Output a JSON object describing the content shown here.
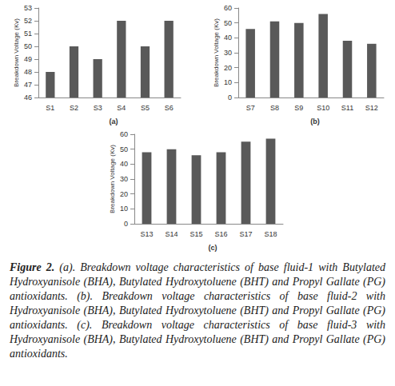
{
  "chart_data": [
    {
      "type": "bar",
      "title": "(a)",
      "y_label": "Breakdown Voltage (Kv)",
      "categories": [
        "S1",
        "S2",
        "S3",
        "S4",
        "S5",
        "S6"
      ],
      "values": [
        48,
        50,
        49,
        52,
        50,
        52
      ],
      "color": "#595959",
      "ylim": [
        46,
        53
      ],
      "yticks": [
        46,
        47,
        48,
        49,
        50,
        51,
        52,
        53
      ],
      "grid": false
    },
    {
      "type": "bar",
      "title": "(b)",
      "y_label": "Breakdown Voltage (Kv)",
      "categories": [
        "S7",
        "S8",
        "S9",
        "S10",
        "S11",
        "S12"
      ],
      "values": [
        46,
        51,
        50,
        56,
        38,
        36
      ],
      "color": "#595959",
      "ylim": [
        0,
        60
      ],
      "yticks": [
        0,
        10,
        20,
        30,
        40,
        50,
        60
      ],
      "grid": false
    },
    {
      "type": "bar",
      "title": "(c)",
      "y_label": "Breakdown Voltage (Kv)",
      "categories": [
        "S13",
        "S14",
        "S15",
        "S16",
        "S17",
        "S18"
      ],
      "values": [
        48,
        50,
        46,
        48,
        55,
        57
      ],
      "color": "#595959",
      "ylim": [
        0,
        60
      ],
      "yticks": [
        0,
        10,
        20,
        30,
        40,
        50,
        60
      ],
      "grid": false
    }
  ],
  "caption": {
    "label": "Figure 2.",
    "text": "(a). Breakdown voltage characteristics of base fluid-1 with Butylated Hydroxyanisole (BHA), Butylated Hydroxytoluene (BHT) and Propyl Gallate (PG) antioxidants. (b). Breakdown voltage characteristics of base fluid-2 with Hydroxyanisole (BHA), Butylated Hydroxytoluene (BHT) and Propyl Gallate (PG) antioxidants. (c). Breakdown voltage characteristics of base fluid-3 with Hydroxyanisole (BHA), Butylated Hydroxytoluene (BHT) and Propyl Gallate (PG) antioxidants."
  }
}
